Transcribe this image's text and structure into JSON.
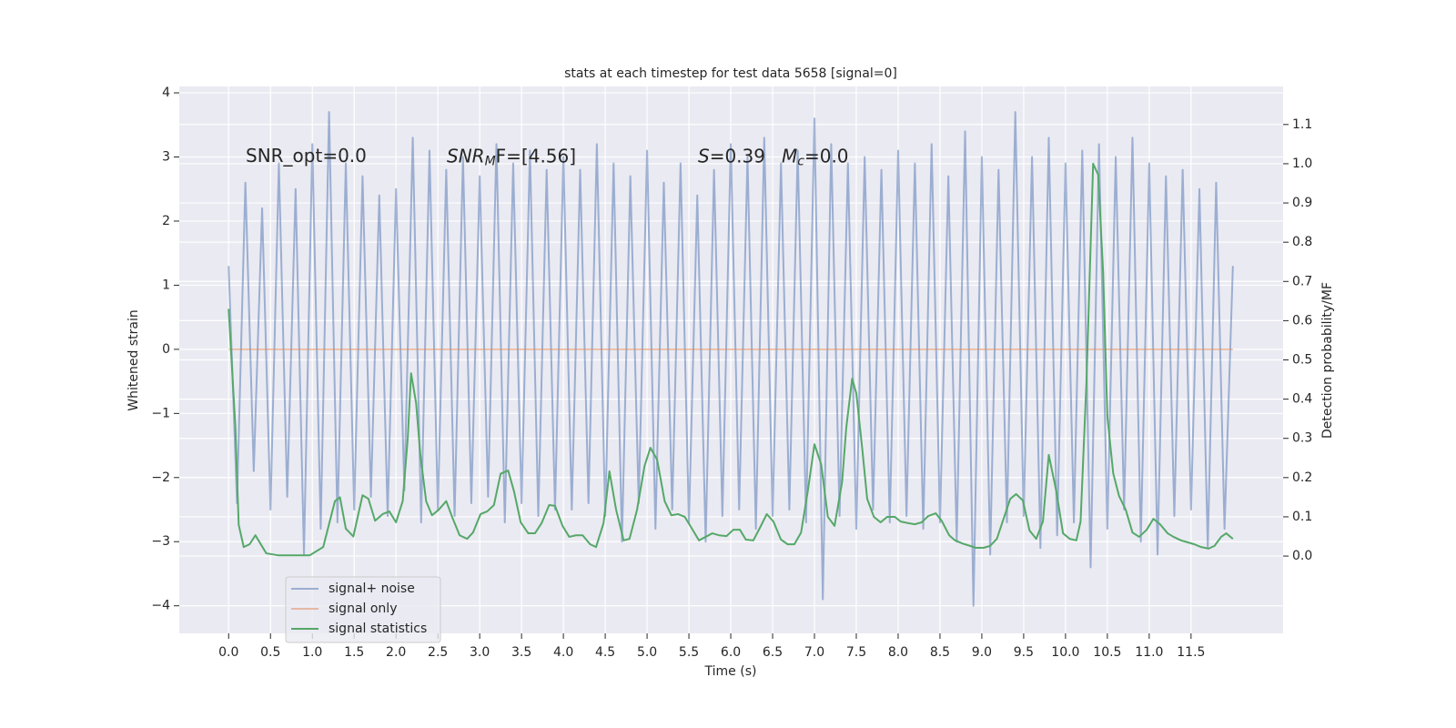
{
  "chart_data": {
    "type": "line",
    "title": "stats at each timestep for test data 5658 [signal=0]",
    "xlabel": "Time (s)",
    "ylabel": "Whitened strain",
    "y2label": "Detection probability/MF",
    "xlim": [
      -0.59,
      12.6
    ],
    "ylim": [
      -4.43,
      4.1
    ],
    "y2lim": [
      -0.197,
      1.197
    ],
    "xticks": [
      {
        "value": 0,
        "label": "0.0"
      },
      0.5,
      {
        "value": 1,
        "label": "1.0"
      },
      1.5,
      {
        "value": 2,
        "label": "2.0"
      },
      2.5,
      {
        "value": 3,
        "label": "3.0"
      },
      3.5,
      {
        "value": 4,
        "label": "4.0"
      },
      4.5,
      {
        "value": 5,
        "label": "5.0"
      },
      5.5,
      {
        "value": 6,
        "label": "6.0"
      },
      6.5,
      {
        "value": 7,
        "label": "7.0"
      },
      7.5,
      {
        "value": 8,
        "label": "8.0"
      },
      8.5,
      {
        "value": 9,
        "label": "9.0"
      },
      9.5,
      {
        "value": 10,
        "label": "10.0"
      },
      10.5,
      {
        "value": 11,
        "label": "11.0"
      },
      11.5
    ],
    "yticks": [
      {
        "value": -4,
        "label": "−4"
      },
      {
        "value": -3,
        "label": "−3"
      },
      {
        "value": -2,
        "label": "−2"
      },
      {
        "value": -1,
        "label": "−1"
      },
      0,
      1,
      2,
      3,
      4
    ],
    "y2ticks": [
      {
        "value": 0,
        "label": "0.0"
      },
      0.1,
      0.2,
      0.3,
      0.4,
      0.5,
      0.6,
      0.7,
      0.8,
      0.9,
      {
        "value": 1,
        "label": "1.0"
      },
      1.1
    ],
    "grid": true,
    "legend": "lower left",
    "annotations": [
      {
        "text": "SNR_opt=0.0"
      },
      {
        "base": "SNR",
        "sub": "M",
        "tail": "F=[4.56]"
      },
      {
        "base": "S",
        "tail": "=0.39"
      },
      {
        "base": "M",
        "sub": "c",
        "tail": "=0.0"
      }
    ],
    "series": [
      {
        "name": "signal+ noise",
        "color": "#4c72b0",
        "x": [
          0,
          0.1,
          0.2,
          0.3,
          0.4,
          0.5,
          0.6,
          0.7,
          0.8,
          0.9,
          1,
          1.1,
          1.2,
          1.3,
          1.4,
          1.5,
          1.6,
          1.7,
          1.8,
          1.9,
          2,
          2.1,
          2.2,
          2.3,
          2.4,
          2.5,
          2.6,
          2.7,
          2.8,
          2.9,
          3,
          3.1,
          3.2,
          3.3,
          3.4,
          3.5,
          3.6,
          3.7,
          3.8,
          3.9,
          4,
          4.1,
          4.2,
          4.3,
          4.4,
          4.5,
          4.6,
          4.7,
          4.8,
          4.9,
          5,
          5.1,
          5.2,
          5.3,
          5.4,
          5.5,
          5.6,
          5.7,
          5.8,
          5.9,
          6,
          6.1,
          6.2,
          6.3,
          6.4,
          6.5,
          6.6,
          6.7,
          6.8,
          6.9,
          7,
          7.1,
          7.2,
          7.3,
          7.4,
          7.5,
          7.6,
          7.7,
          7.8,
          7.9,
          8,
          8.1,
          8.2,
          8.3,
          8.4,
          8.5,
          8.6,
          8.7,
          8.8,
          8.9,
          9,
          9.1,
          9.2,
          9.3,
          9.4,
          9.5,
          9.6,
          9.7,
          9.8,
          9.9,
          10,
          10.1,
          10.2,
          10.3,
          10.4,
          10.5,
          10.6,
          10.7,
          10.8,
          10.9,
          11,
          11.1,
          11.2,
          11.3,
          11.4,
          11.5,
          11.6,
          11.7,
          11.8,
          11.9,
          12
        ],
        "values": [
          1.3,
          -2.4,
          2.6,
          -1.9,
          2.2,
          -2.5,
          2.9,
          -2.3,
          2.5,
          -3.2,
          3.2,
          -2.8,
          3.7,
          -2.7,
          2.9,
          -2.5,
          2.7,
          -2.3,
          2.4,
          -2.6,
          2.5,
          -2.2,
          3.3,
          -2.7,
          3.1,
          -2.5,
          2.8,
          -2.6,
          3.0,
          -2.4,
          2.7,
          -2.3,
          3.2,
          -2.7,
          2.9,
          -2.4,
          3.1,
          -2.6,
          2.8,
          -2.5,
          3.0,
          -2.5,
          2.8,
          -2.4,
          3.2,
          -2.6,
          2.9,
          -3.0,
          2.7,
          -2.4,
          3.1,
          -2.8,
          2.6,
          -2.5,
          2.9,
          -2.7,
          2.4,
          -3.0,
          2.8,
          -2.6,
          3.2,
          -2.5,
          3.0,
          -2.8,
          3.3,
          -2.6,
          2.9,
          -2.5,
          3.1,
          -2.7,
          3.6,
          -3.9,
          3.2,
          -2.6,
          2.9,
          -2.8,
          3.0,
          -2.5,
          2.8,
          -2.7,
          3.1,
          -2.6,
          2.9,
          -2.8,
          3.2,
          -2.7,
          2.7,
          -3.0,
          3.4,
          -4.0,
          3.0,
          -3.2,
          2.8,
          -2.7,
          3.7,
          -2.6,
          3.0,
          -3.1,
          3.3,
          -2.9,
          2.9,
          -2.7,
          3.1,
          -3.4,
          3.2,
          -2.8,
          3.0,
          -2.5,
          3.3,
          -3.0,
          2.9,
          -3.2,
          2.7,
          -2.6,
          2.8,
          -2.5,
          2.5,
          -3.1,
          2.6,
          -2.8,
          1.3
        ]
      },
      {
        "name": "signal only",
        "color": "#dd8452",
        "x": [
          0,
          12
        ],
        "values": [
          0,
          0
        ]
      },
      {
        "name": "signal statistics",
        "color": "#55a868",
        "axis": "y2",
        "x": [
          0,
          0.08,
          0.12,
          0.18,
          0.25,
          0.32,
          0.45,
          0.59,
          0.75,
          0.97,
          1.13,
          1.27,
          1.33,
          1.4,
          1.49,
          1.6,
          1.67,
          1.75,
          1.84,
          1.92,
          2,
          2.08,
          2.14,
          2.18,
          2.24,
          2.29,
          2.36,
          2.43,
          2.51,
          2.6,
          2.67,
          2.76,
          2.85,
          2.92,
          3.01,
          3.09,
          3.17,
          3.25,
          3.34,
          3.41,
          3.49,
          3.58,
          3.66,
          3.74,
          3.83,
          3.9,
          3.99,
          4.07,
          4.15,
          4.23,
          4.32,
          4.39,
          4.48,
          4.55,
          4.63,
          4.72,
          4.79,
          4.88,
          4.97,
          5.04,
          5.12,
          5.21,
          5.29,
          5.37,
          5.45,
          5.53,
          5.62,
          5.7,
          5.78,
          5.86,
          5.95,
          6.03,
          6.11,
          6.18,
          6.27,
          6.36,
          6.43,
          6.51,
          6.6,
          6.68,
          6.76,
          6.84,
          6.92,
          7,
          7.08,
          7.16,
          7.24,
          7.33,
          7.38,
          7.45,
          7.5,
          7.57,
          7.63,
          7.71,
          7.79,
          7.87,
          7.96,
          8.03,
          8.12,
          8.2,
          8.28,
          8.36,
          8.45,
          8.52,
          8.61,
          8.68,
          8.77,
          8.86,
          8.93,
          9.02,
          9.1,
          9.18,
          9.26,
          9.34,
          9.41,
          9.49,
          9.57,
          9.65,
          9.73,
          9.8,
          9.89,
          9.97,
          10.05,
          10.13,
          10.18,
          10.25,
          10.33,
          10.39,
          10.45,
          10.5,
          10.57,
          10.64,
          10.72,
          10.8,
          10.88,
          10.97,
          11.05,
          11.13,
          11.22,
          11.29,
          11.38,
          11.46,
          11.54,
          11.62,
          11.71,
          11.78,
          11.86,
          11.92,
          12
        ],
        "values": [
          0.63,
          0.33,
          0.08,
          0.023,
          0.03,
          0.053,
          0.007,
          0.002,
          0.002,
          0.002,
          0.023,
          0.14,
          0.15,
          0.07,
          0.05,
          0.155,
          0.146,
          0.09,
          0.107,
          0.114,
          0.086,
          0.14,
          0.3,
          0.466,
          0.39,
          0.26,
          0.14,
          0.104,
          0.118,
          0.14,
          0.1,
          0.053,
          0.044,
          0.06,
          0.107,
          0.114,
          0.13,
          0.21,
          0.218,
          0.165,
          0.086,
          0.058,
          0.058,
          0.084,
          0.13,
          0.128,
          0.077,
          0.049,
          0.053,
          0.053,
          0.03,
          0.023,
          0.084,
          0.216,
          0.118,
          0.04,
          0.044,
          0.118,
          0.23,
          0.276,
          0.246,
          0.14,
          0.104,
          0.107,
          0.1,
          0.072,
          0.04,
          0.049,
          0.058,
          0.053,
          0.051,
          0.067,
          0.067,
          0.042,
          0.04,
          0.077,
          0.107,
          0.088,
          0.042,
          0.03,
          0.03,
          0.06,
          0.165,
          0.285,
          0.234,
          0.1,
          0.077,
          0.188,
          0.327,
          0.452,
          0.415,
          0.276,
          0.146,
          0.1,
          0.086,
          0.1,
          0.1,
          0.088,
          0.084,
          0.081,
          0.086,
          0.102,
          0.109,
          0.09,
          0.053,
          0.04,
          0.032,
          0.026,
          0.021,
          0.021,
          0.026,
          0.044,
          0.095,
          0.146,
          0.158,
          0.142,
          0.065,
          0.044,
          0.088,
          0.258,
          0.165,
          0.058,
          0.044,
          0.04,
          0.088,
          0.443,
          1.0,
          0.972,
          0.72,
          0.355,
          0.211,
          0.153,
          0.118,
          0.06,
          0.049,
          0.067,
          0.095,
          0.081,
          0.058,
          0.049,
          0.04,
          0.035,
          0.03,
          0.023,
          0.019,
          0.026,
          0.049,
          0.058,
          0.044
        ]
      }
    ]
  }
}
